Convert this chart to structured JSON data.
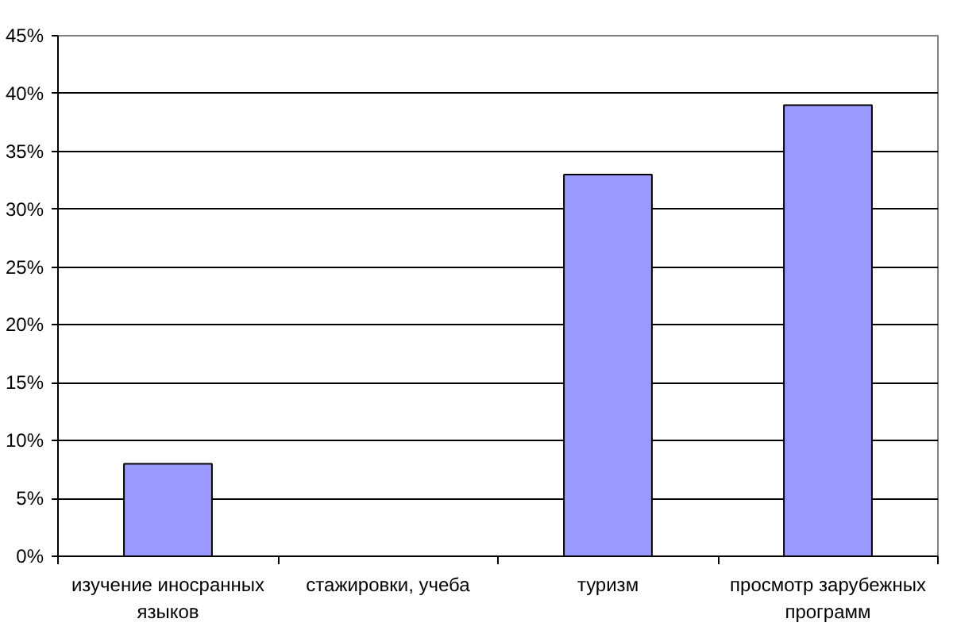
{
  "chart_data": {
    "type": "bar",
    "categories": [
      "изучение иносранных языков",
      "стажировки, учеба",
      "туризм",
      "просмотр зарубежных программ"
    ],
    "values": [
      8,
      0,
      33,
      39
    ],
    "color": "#9999ff",
    "ylim": [
      0,
      45
    ],
    "yticks": [
      {
        "value": 0,
        "label": "0%"
      },
      {
        "value": 5,
        "label": "5%"
      },
      {
        "value": 10,
        "label": "10%"
      },
      {
        "value": 15,
        "label": "15%"
      },
      {
        "value": 20,
        "label": "20%"
      },
      {
        "value": 25,
        "label": "25%"
      },
      {
        "value": 30,
        "label": "30%"
      },
      {
        "value": 35,
        "label": "35%"
      },
      {
        "value": 40,
        "label": "40%"
      },
      {
        "value": 45,
        "label": "45%"
      }
    ],
    "grid": "y"
  }
}
